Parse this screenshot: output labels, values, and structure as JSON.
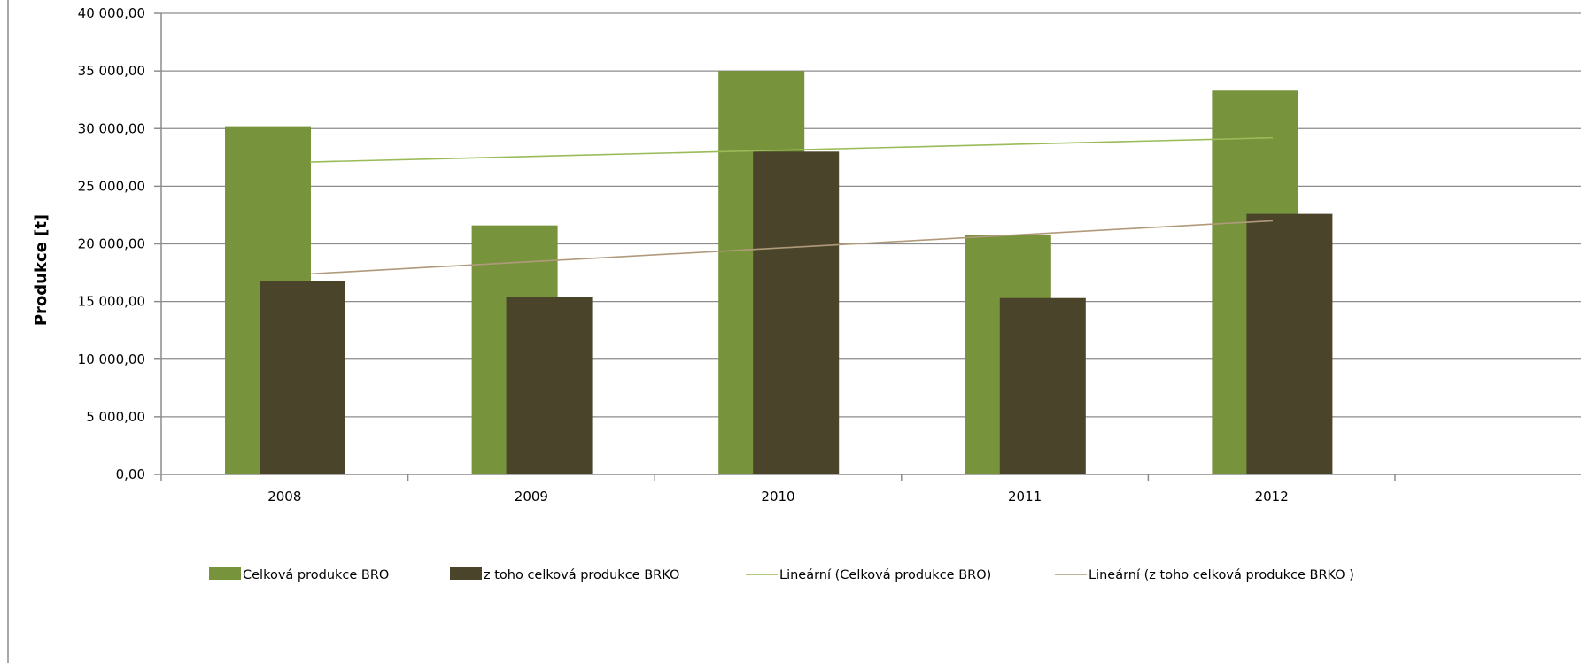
{
  "chart_data": {
    "type": "bar",
    "title": "",
    "xlabel": "",
    "ylabel": "Produkce [t]",
    "ylim": [
      0,
      40000
    ],
    "y_tick_values": [
      0,
      5000,
      10000,
      15000,
      20000,
      25000,
      30000,
      35000,
      40000
    ],
    "y_tick_labels": [
      "0,00",
      "5 000,00",
      "10 000,00",
      "15 000,00",
      "20 000,00",
      "25 000,00",
      "30 000,00",
      "35 000,00",
      "40 000,00"
    ],
    "categories": [
      "2008",
      "2009",
      "2010",
      "2011",
      "2012"
    ],
    "series": [
      {
        "name": "Celková produkce BRO",
        "color": "#77933c",
        "values": [
          30200,
          21600,
          35000,
          20800,
          33300
        ]
      },
      {
        "name": "z toho celková produkce BRKO",
        "color": "#4a452a",
        "values": [
          16800,
          15400,
          28000,
          15300,
          22600
        ]
      }
    ],
    "trendlines": [
      {
        "name": "Lineární (Celková produkce BRO)",
        "color": "#9bbb59",
        "type": "linear",
        "start_value": 27100,
        "end_value": 29200
      },
      {
        "name": "Lineární (z toho celková produkce BRKO )",
        "color": "#b09a7c",
        "type": "linear",
        "start_value": 17400,
        "end_value": 22000
      }
    ],
    "grid": true,
    "legend_position": "bottom"
  }
}
